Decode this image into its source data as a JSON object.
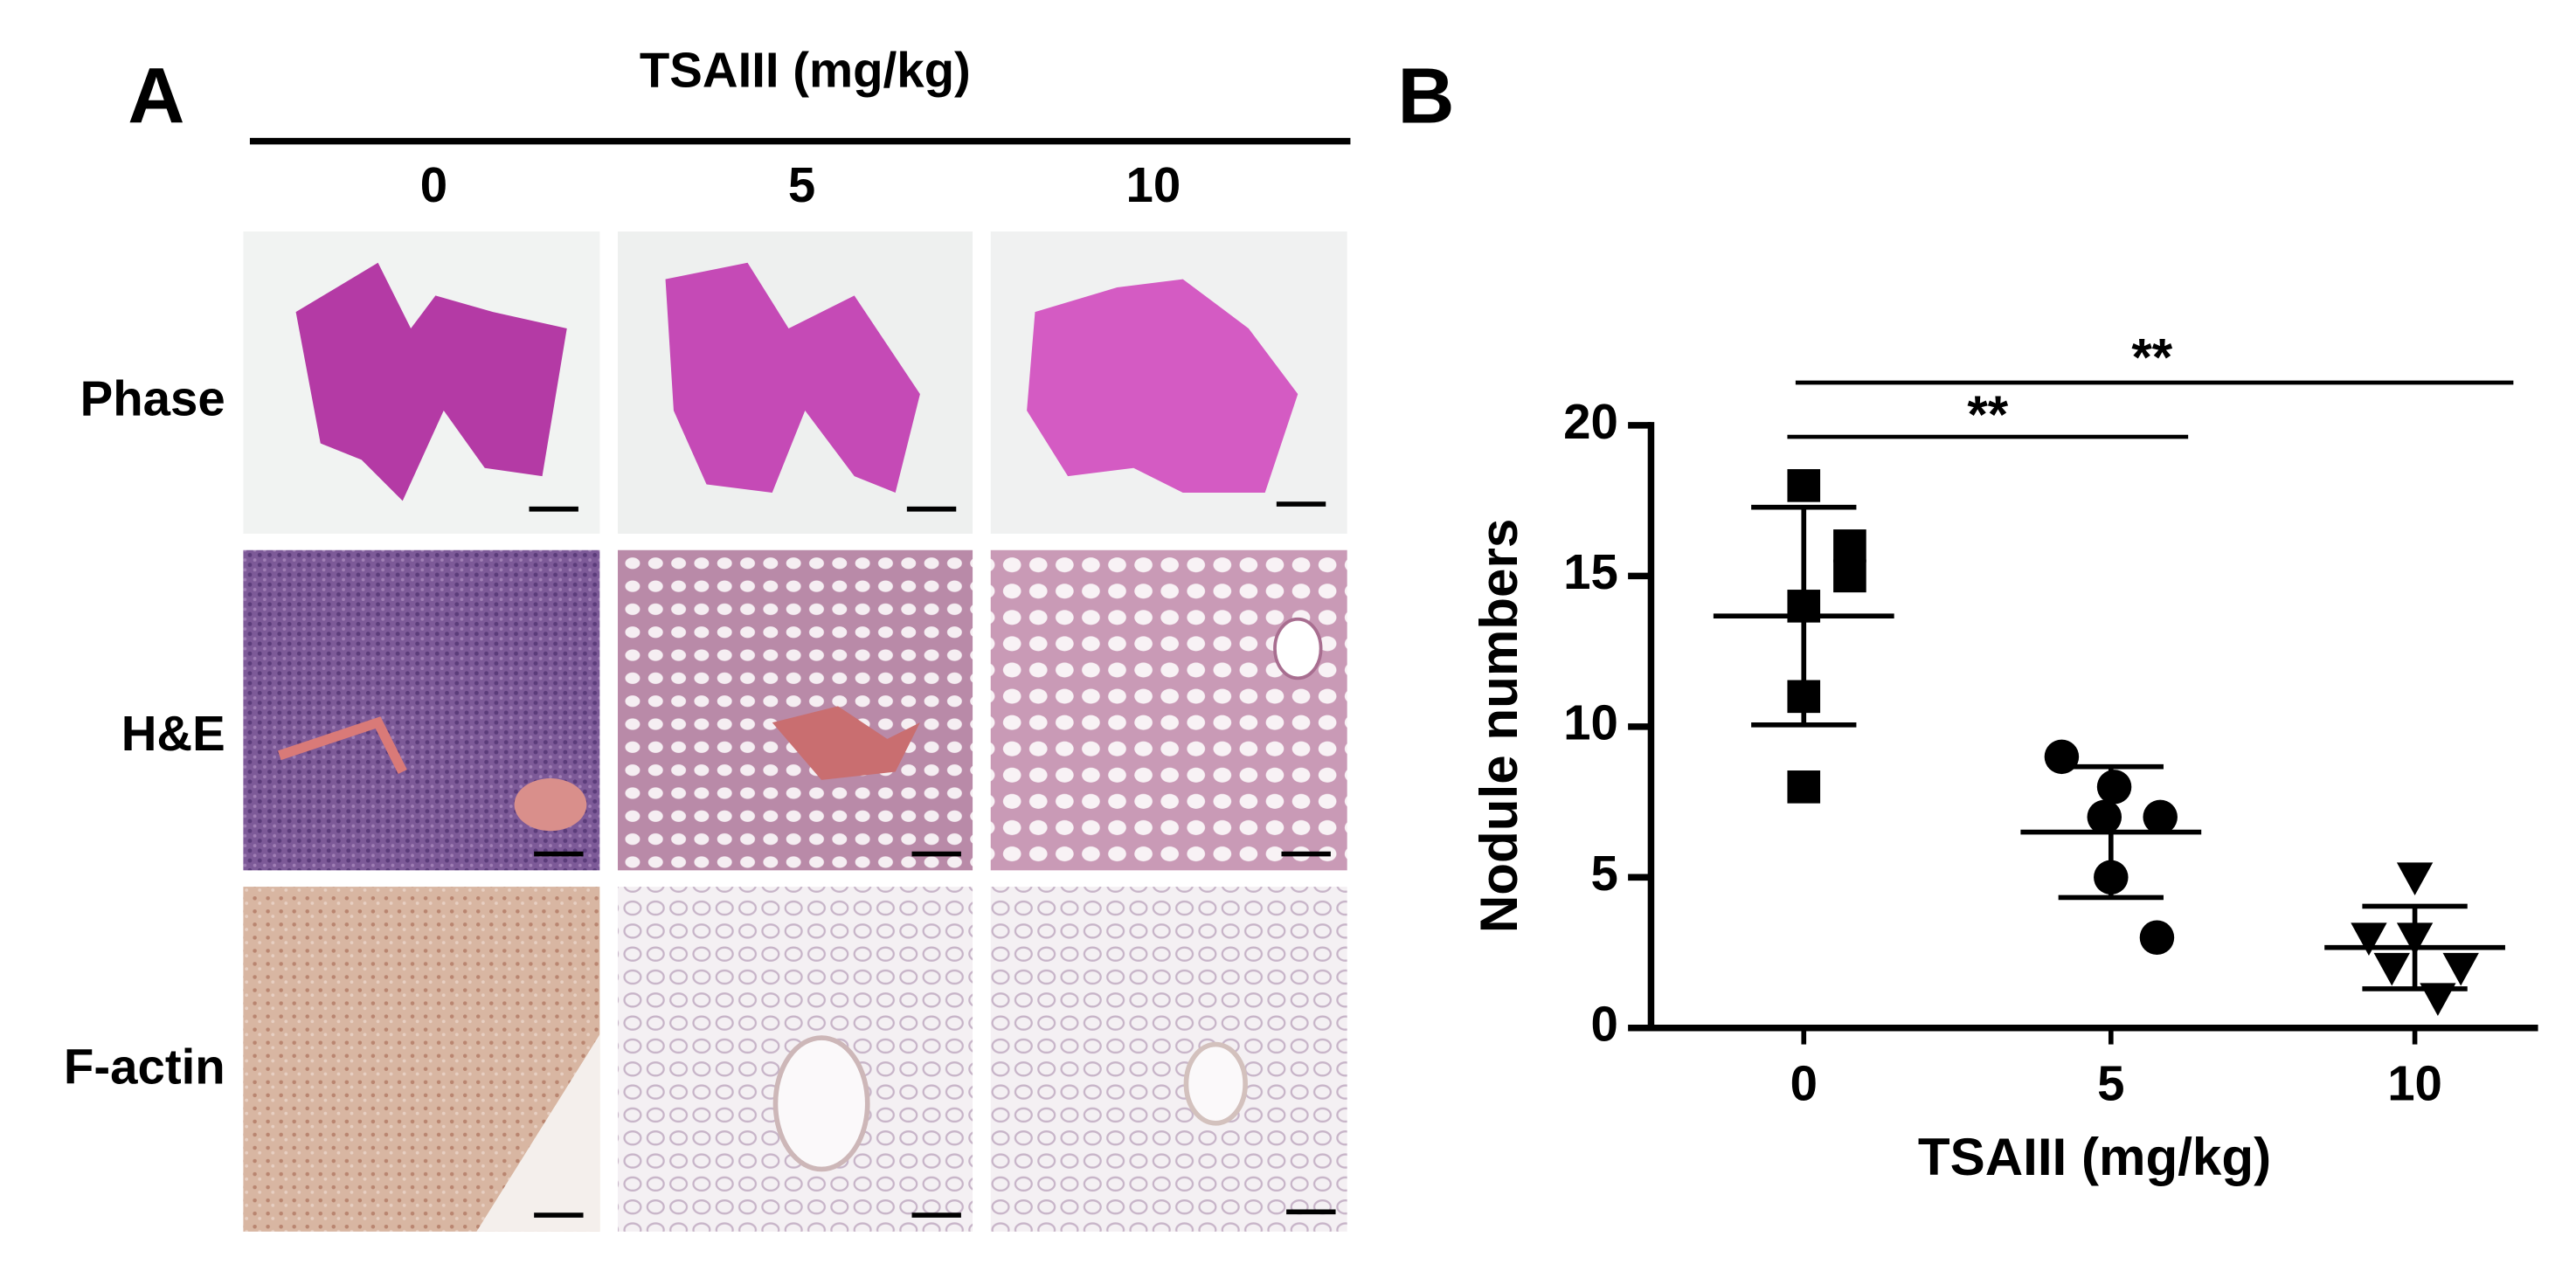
{
  "panel_a": {
    "label": "A",
    "header": "TSAIII (mg/kg)",
    "columns": [
      "0",
      "5",
      "10"
    ],
    "rows": [
      "Phase",
      "H&E",
      "F-actin"
    ]
  },
  "chart_data": {
    "type": "dot",
    "label": "B",
    "x_label": "TSAIII (mg/kg)",
    "y_label": "Nodule numbers",
    "categories": [
      "0",
      "5",
      "10"
    ],
    "points": [
      [
        18,
        16,
        15,
        14,
        11,
        8
      ],
      [
        9,
        8,
        7,
        7,
        5,
        3
      ],
      [
        5,
        3,
        3,
        2,
        2,
        1
      ]
    ],
    "means": [
      13.67,
      6.5,
      2.67
    ],
    "sds": [
      3.61,
      2.17,
      1.37
    ],
    "markers": [
      "square",
      "circle",
      "triangle-down"
    ],
    "color": "#000000",
    "ylim": [
      0,
      20
    ],
    "yticks": [
      0,
      5,
      10,
      15,
      20
    ],
    "annotations": [
      "**",
      "**"
    ]
  }
}
